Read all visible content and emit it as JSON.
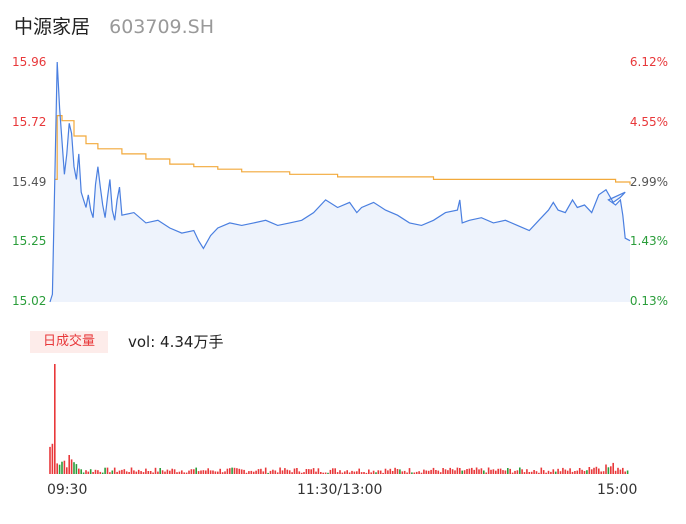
{
  "stock": {
    "name": "中源家居",
    "code": "603709.SH"
  },
  "colors": {
    "price": "#4a7fe0",
    "avg": "#f2a93b",
    "up": "#e8383a",
    "down": "#2a9d3a",
    "fill": "#eef3fc",
    "neutral": "#555555"
  },
  "volume_panel": {
    "badge": "日成交量",
    "label": "vol: 4.34万手"
  },
  "chart_data": {
    "type": "line",
    "title": "",
    "prev_close": 15.04,
    "ylim": [
      15.02,
      15.96
    ],
    "y_tick_labels": [
      "15.96",
      "15.72",
      "15.49",
      "15.25",
      "15.02"
    ],
    "pct_tick_labels": [
      "6.12%",
      "4.55%",
      "2.99%",
      "1.43%",
      "-0.13%"
    ],
    "x_tick_labels": [
      "09:30",
      "11:30/13:00",
      "15:00"
    ],
    "series": [
      {
        "name": "price",
        "keypoints": [
          [
            0,
            15.02
          ],
          [
            1,
            15.05
          ],
          [
            2,
            15.5
          ],
          [
            3,
            15.96
          ],
          [
            4,
            15.78
          ],
          [
            5,
            15.65
          ],
          [
            6,
            15.52
          ],
          [
            7,
            15.6
          ],
          [
            8,
            15.72
          ],
          [
            9,
            15.68
          ],
          [
            10,
            15.55
          ],
          [
            11,
            15.5
          ],
          [
            12,
            15.6
          ],
          [
            13,
            15.45
          ],
          [
            14,
            15.42
          ],
          [
            15,
            15.39
          ],
          [
            16,
            15.44
          ],
          [
            17,
            15.38
          ],
          [
            18,
            15.35
          ],
          [
            19,
            15.48
          ],
          [
            20,
            15.55
          ],
          [
            21,
            15.47
          ],
          [
            22,
            15.4
          ],
          [
            23,
            15.35
          ],
          [
            24,
            15.43
          ],
          [
            25,
            15.5
          ],
          [
            26,
            15.38
          ],
          [
            27,
            15.34
          ],
          [
            28,
            15.42
          ],
          [
            29,
            15.47
          ],
          [
            30,
            15.36
          ],
          [
            35,
            15.37
          ],
          [
            40,
            15.33
          ],
          [
            45,
            15.34
          ],
          [
            50,
            15.31
          ],
          [
            55,
            15.29
          ],
          [
            60,
            15.3
          ],
          [
            62,
            15.26
          ],
          [
            64,
            15.23
          ],
          [
            67,
            15.28
          ],
          [
            70,
            15.31
          ],
          [
            75,
            15.33
          ],
          [
            80,
            15.32
          ],
          [
            85,
            15.33
          ],
          [
            90,
            15.34
          ],
          [
            95,
            15.32
          ],
          [
            100,
            15.33
          ],
          [
            105,
            15.34
          ],
          [
            110,
            15.37
          ],
          [
            115,
            15.42
          ],
          [
            120,
            15.39
          ],
          [
            125,
            15.41
          ],
          [
            128,
            15.37
          ],
          [
            130,
            15.39
          ],
          [
            135,
            15.41
          ],
          [
            140,
            15.38
          ],
          [
            145,
            15.36
          ],
          [
            150,
            15.33
          ],
          [
            155,
            15.32
          ],
          [
            160,
            15.34
          ],
          [
            165,
            15.37
          ],
          [
            170,
            15.38
          ],
          [
            171,
            15.42
          ],
          [
            172,
            15.33
          ],
          [
            175,
            15.34
          ],
          [
            180,
            15.35
          ],
          [
            185,
            15.33
          ],
          [
            190,
            15.34
          ],
          [
            195,
            15.32
          ],
          [
            200,
            15.3
          ],
          [
            205,
            15.35
          ],
          [
            208,
            15.38
          ],
          [
            210,
            15.41
          ],
          [
            212,
            15.38
          ],
          [
            215,
            15.37
          ],
          [
            218,
            15.42
          ],
          [
            220,
            15.39
          ],
          [
            223,
            15.4
          ],
          [
            226,
            15.37
          ],
          [
            229,
            15.44
          ],
          [
            232,
            15.46
          ],
          [
            235,
            15.41
          ],
          [
            238,
            15.43
          ],
          [
            240,
            15.45
          ],
          [
            233,
            15.42
          ],
          [
            236,
            15.4
          ],
          [
            238,
            15.42
          ],
          [
            239,
            15.36
          ],
          [
            240,
            15.27
          ],
          [
            242,
            15.26
          ]
        ]
      },
      {
        "name": "avg",
        "keypoints": [
          [
            2,
            15.5
          ],
          [
            3,
            15.75
          ],
          [
            5,
            15.73
          ],
          [
            10,
            15.67
          ],
          [
            15,
            15.64
          ],
          [
            20,
            15.62
          ],
          [
            30,
            15.6
          ],
          [
            40,
            15.58
          ],
          [
            50,
            15.56
          ],
          [
            60,
            15.55
          ],
          [
            70,
            15.54
          ],
          [
            80,
            15.53
          ],
          [
            100,
            15.52
          ],
          [
            120,
            15.51
          ],
          [
            140,
            15.51
          ],
          [
            160,
            15.5
          ],
          [
            180,
            15.5
          ],
          [
            200,
            15.5
          ],
          [
            220,
            15.5
          ],
          [
            230,
            15.5
          ],
          [
            236,
            15.49
          ],
          [
            240,
            15.49
          ],
          [
            242,
            15.48
          ]
        ]
      }
    ],
    "volume": {
      "unit": "万手",
      "total": 4.34,
      "peak_index": 2
    }
  }
}
